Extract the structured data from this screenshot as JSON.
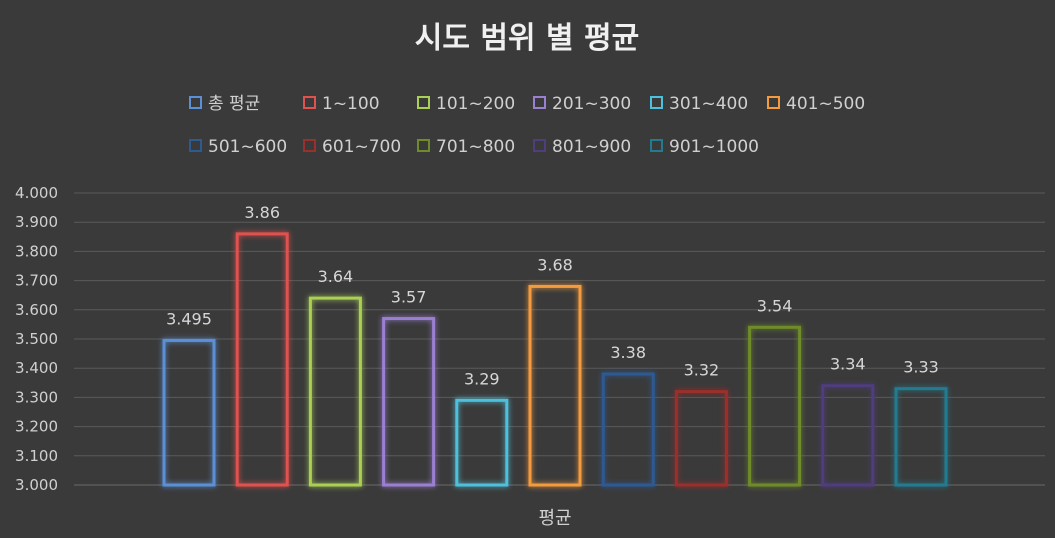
{
  "chart_data": {
    "type": "bar",
    "title": "시도 범위 별 평균",
    "xlabel": "평균",
    "ylabel": "",
    "ylim": [
      3.0,
      4.0
    ],
    "yticks": [
      "3.000",
      "3.100",
      "3.200",
      "3.300",
      "3.400",
      "3.500",
      "3.600",
      "3.700",
      "3.800",
      "3.900",
      "4.000"
    ],
    "category": "평균",
    "legend_position": "top",
    "series": [
      {
        "name": "총 평균",
        "value": 3.495,
        "label": "3.495",
        "color": "#5b8fd6"
      },
      {
        "name": "1~100",
        "value": 3.86,
        "label": "3.86",
        "color": "#e0524f"
      },
      {
        "name": "101~200",
        "value": 3.64,
        "label": "3.64",
        "color": "#a9cf54"
      },
      {
        "name": "201~300",
        "value": 3.57,
        "label": "3.57",
        "color": "#9b7fd1"
      },
      {
        "name": "301~400",
        "value": 3.29,
        "label": "3.29",
        "color": "#4fc0db"
      },
      {
        "name": "401~500",
        "value": 3.68,
        "label": "3.68",
        "color": "#f39b3d"
      },
      {
        "name": "501~600",
        "value": 3.38,
        "label": "3.38",
        "color": "#2e5a94"
      },
      {
        "name": "601~700",
        "value": 3.32,
        "label": "3.32",
        "color": "#9a2f2c"
      },
      {
        "name": "701~800",
        "value": 3.54,
        "label": "3.54",
        "color": "#6f8c2a"
      },
      {
        "name": "801~900",
        "value": 3.34,
        "label": "3.34",
        "color": "#4f3d7d"
      },
      {
        "name": "901~1000",
        "value": 3.33,
        "label": "3.33",
        "color": "#237b8f"
      }
    ]
  }
}
